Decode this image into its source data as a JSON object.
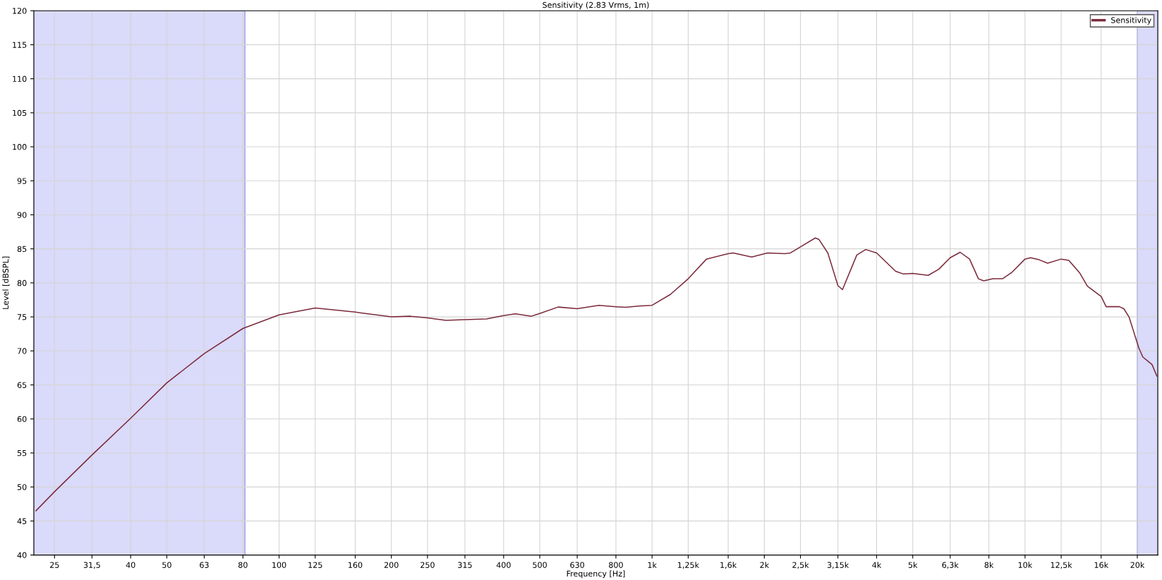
{
  "chart_data": {
    "type": "line",
    "title": "Sensitivity (2.83 Vrms, 1m)",
    "xlabel": "Frequency [Hz]",
    "ylabel": "Level [dBSPL]",
    "log": "x",
    "xlim": [
      22,
      22700
    ],
    "ylim": [
      40,
      120
    ],
    "xticks": [
      {
        "value": 25,
        "label": "25"
      },
      {
        "value": 31.5,
        "label": "31,5"
      },
      {
        "value": 40,
        "label": "40"
      },
      {
        "value": 50,
        "label": "50"
      },
      {
        "value": 63,
        "label": "63"
      },
      {
        "value": 80,
        "label": "80"
      },
      {
        "value": 100,
        "label": "100"
      },
      {
        "value": 125,
        "label": "125"
      },
      {
        "value": 160,
        "label": "160"
      },
      {
        "value": 200,
        "label": "200"
      },
      {
        "value": 250,
        "label": "250"
      },
      {
        "value": 315,
        "label": "315"
      },
      {
        "value": 400,
        "label": "400"
      },
      {
        "value": 500,
        "label": "500"
      },
      {
        "value": 630,
        "label": "630"
      },
      {
        "value": 800,
        "label": "800"
      },
      {
        "value": 1000,
        "label": "1k"
      },
      {
        "value": 1250,
        "label": "1,25k"
      },
      {
        "value": 1600,
        "label": "1,6k"
      },
      {
        "value": 2000,
        "label": "2k"
      },
      {
        "value": 2500,
        "label": "2,5k"
      },
      {
        "value": 3150,
        "label": "3,15k"
      },
      {
        "value": 4000,
        "label": "4k"
      },
      {
        "value": 5000,
        "label": "5k"
      },
      {
        "value": 6300,
        "label": "6,3k"
      },
      {
        "value": 8000,
        "label": "8k"
      },
      {
        "value": 10000,
        "label": "10k"
      },
      {
        "value": 12500,
        "label": "12,5k"
      },
      {
        "value": 16000,
        "label": "16k"
      },
      {
        "value": 20000,
        "label": "20k"
      }
    ],
    "yticks": [
      40,
      45,
      50,
      55,
      60,
      65,
      70,
      75,
      80,
      85,
      90,
      95,
      100,
      105,
      110,
      115,
      120
    ],
    "grid": true,
    "legend": "top right",
    "line_style": "solid",
    "marker": "none",
    "bands": [
      {
        "axis": "x",
        "from": 22,
        "to": 81,
        "color": "#dadafa"
      },
      {
        "axis": "x",
        "from": 20000,
        "to": 22700,
        "color": "#dadafa"
      }
    ],
    "series": [
      {
        "name": "Sensitivity",
        "color": "#7b2a3a",
        "x": [
          22.3,
          25,
          31.5,
          40,
          50,
          63,
          80,
          100,
          125,
          160,
          200,
          225,
          250,
          280,
          315,
          360,
          400,
          430,
          475,
          500,
          560,
          630,
          720,
          800,
          850,
          920,
          1000,
          1120,
          1250,
          1400,
          1600,
          1650,
          1850,
          2040,
          2270,
          2350,
          2500,
          2740,
          2800,
          2960,
          3150,
          3240,
          3540,
          3740,
          4000,
          4500,
          4720,
          5000,
          5500,
          5870,
          6300,
          6700,
          7100,
          7500,
          7750,
          8200,
          8700,
          9200,
          10000,
          10350,
          10900,
          11500,
          12500,
          13100,
          14000,
          14700,
          16000,
          16500,
          17900,
          18400,
          19000,
          20200,
          20700,
          21900,
          22570
        ],
        "values": [
          46.5,
          49.3,
          54.7,
          60.1,
          65.3,
          69.6,
          73.3,
          75.3,
          76.3,
          75.7,
          75.0,
          75.1,
          74.85,
          74.5,
          74.6,
          74.7,
          75.2,
          75.45,
          75.1,
          75.5,
          76.45,
          76.2,
          76.7,
          76.5,
          76.4,
          76.6,
          76.7,
          78.3,
          80.6,
          83.5,
          84.3,
          84.4,
          83.8,
          84.4,
          84.3,
          84.4,
          85.3,
          86.6,
          86.4,
          84.4,
          79.6,
          79.0,
          84.1,
          84.9,
          84.4,
          81.7,
          81.3,
          81.4,
          81.1,
          82.0,
          83.7,
          84.5,
          83.5,
          80.6,
          80.3,
          80.6,
          80.6,
          81.5,
          83.5,
          83.7,
          83.4,
          82.9,
          83.5,
          83.3,
          81.5,
          79.5,
          78.0,
          76.5,
          76.5,
          76.2,
          75.0,
          70.4,
          69.1,
          68.0,
          66.3
        ]
      }
    ]
  }
}
